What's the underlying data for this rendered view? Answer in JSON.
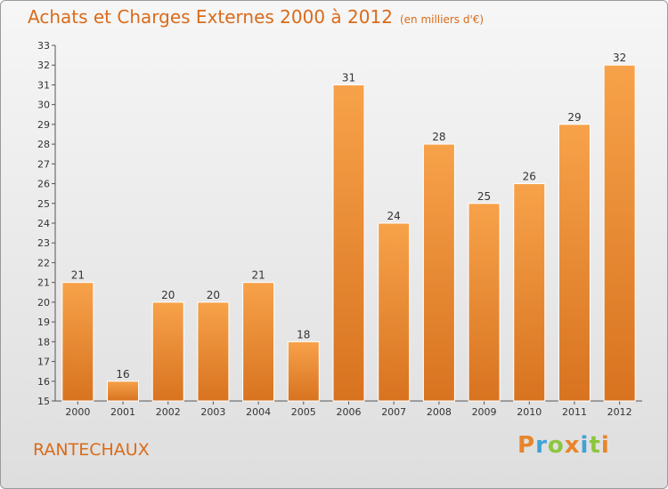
{
  "chart_data": {
    "type": "bar",
    "title": "Achats et Charges Externes 2000 à 2012",
    "subtitle": "(en milliers d'€)",
    "categories": [
      "2000",
      "2001",
      "2002",
      "2003",
      "2004",
      "2005",
      "2006",
      "2007",
      "2008",
      "2009",
      "2010",
      "2011",
      "2012"
    ],
    "values": [
      21,
      16,
      20,
      20,
      21,
      18,
      31,
      24,
      28,
      25,
      26,
      29,
      32
    ],
    "ylim": [
      15,
      33
    ],
    "yticks": [
      15,
      16,
      17,
      18,
      19,
      20,
      21,
      22,
      23,
      24,
      25,
      26,
      27,
      28,
      29,
      30,
      31,
      32,
      33
    ],
    "grid": false,
    "bar_color_top": "#f7a24a",
    "bar_color_bottom": "#d87320",
    "xlabel": "",
    "ylabel": ""
  },
  "footer": {
    "town": "RANTECHAUX",
    "brand": "Proxiti",
    "brand_letters": [
      {
        "ch": "P",
        "color": "#e8852b"
      },
      {
        "ch": "r",
        "color": "#3fa2d8"
      },
      {
        "ch": "o",
        "color": "#8cc63f"
      },
      {
        "ch": "x",
        "color": "#e8852b"
      },
      {
        "ch": "i",
        "color": "#3fa2d8"
      },
      {
        "ch": "t",
        "color": "#8cc63f"
      },
      {
        "ch": "i",
        "color": "#e8852b"
      }
    ]
  },
  "colors": {
    "accent": "#d96b1a",
    "axis": "#555555",
    "label": "#333333"
  }
}
